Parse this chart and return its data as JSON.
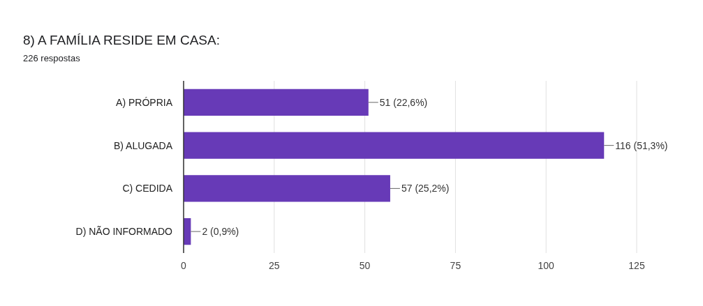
{
  "chart_data": {
    "type": "bar",
    "orientation": "horizontal",
    "title": "8) A FAMÍLIA RESIDE EM CASA:",
    "subtitle": "226 respostas",
    "categories": [
      "A) PRÓPRIA",
      "B) ALUGADA",
      "C) CEDIDA",
      "D) NÃO INFORMADO"
    ],
    "values": [
      51,
      116,
      57,
      2
    ],
    "color": "#673ab7",
    "value_labels": [
      "51 (22,6%)",
      "116 (51,3%)",
      "57 (25,2%)",
      "2 (0,9%)"
    ],
    "xlim": [
      0,
      125
    ],
    "xticks": [
      0,
      25,
      50,
      75,
      100,
      125
    ],
    "grid": "x"
  }
}
